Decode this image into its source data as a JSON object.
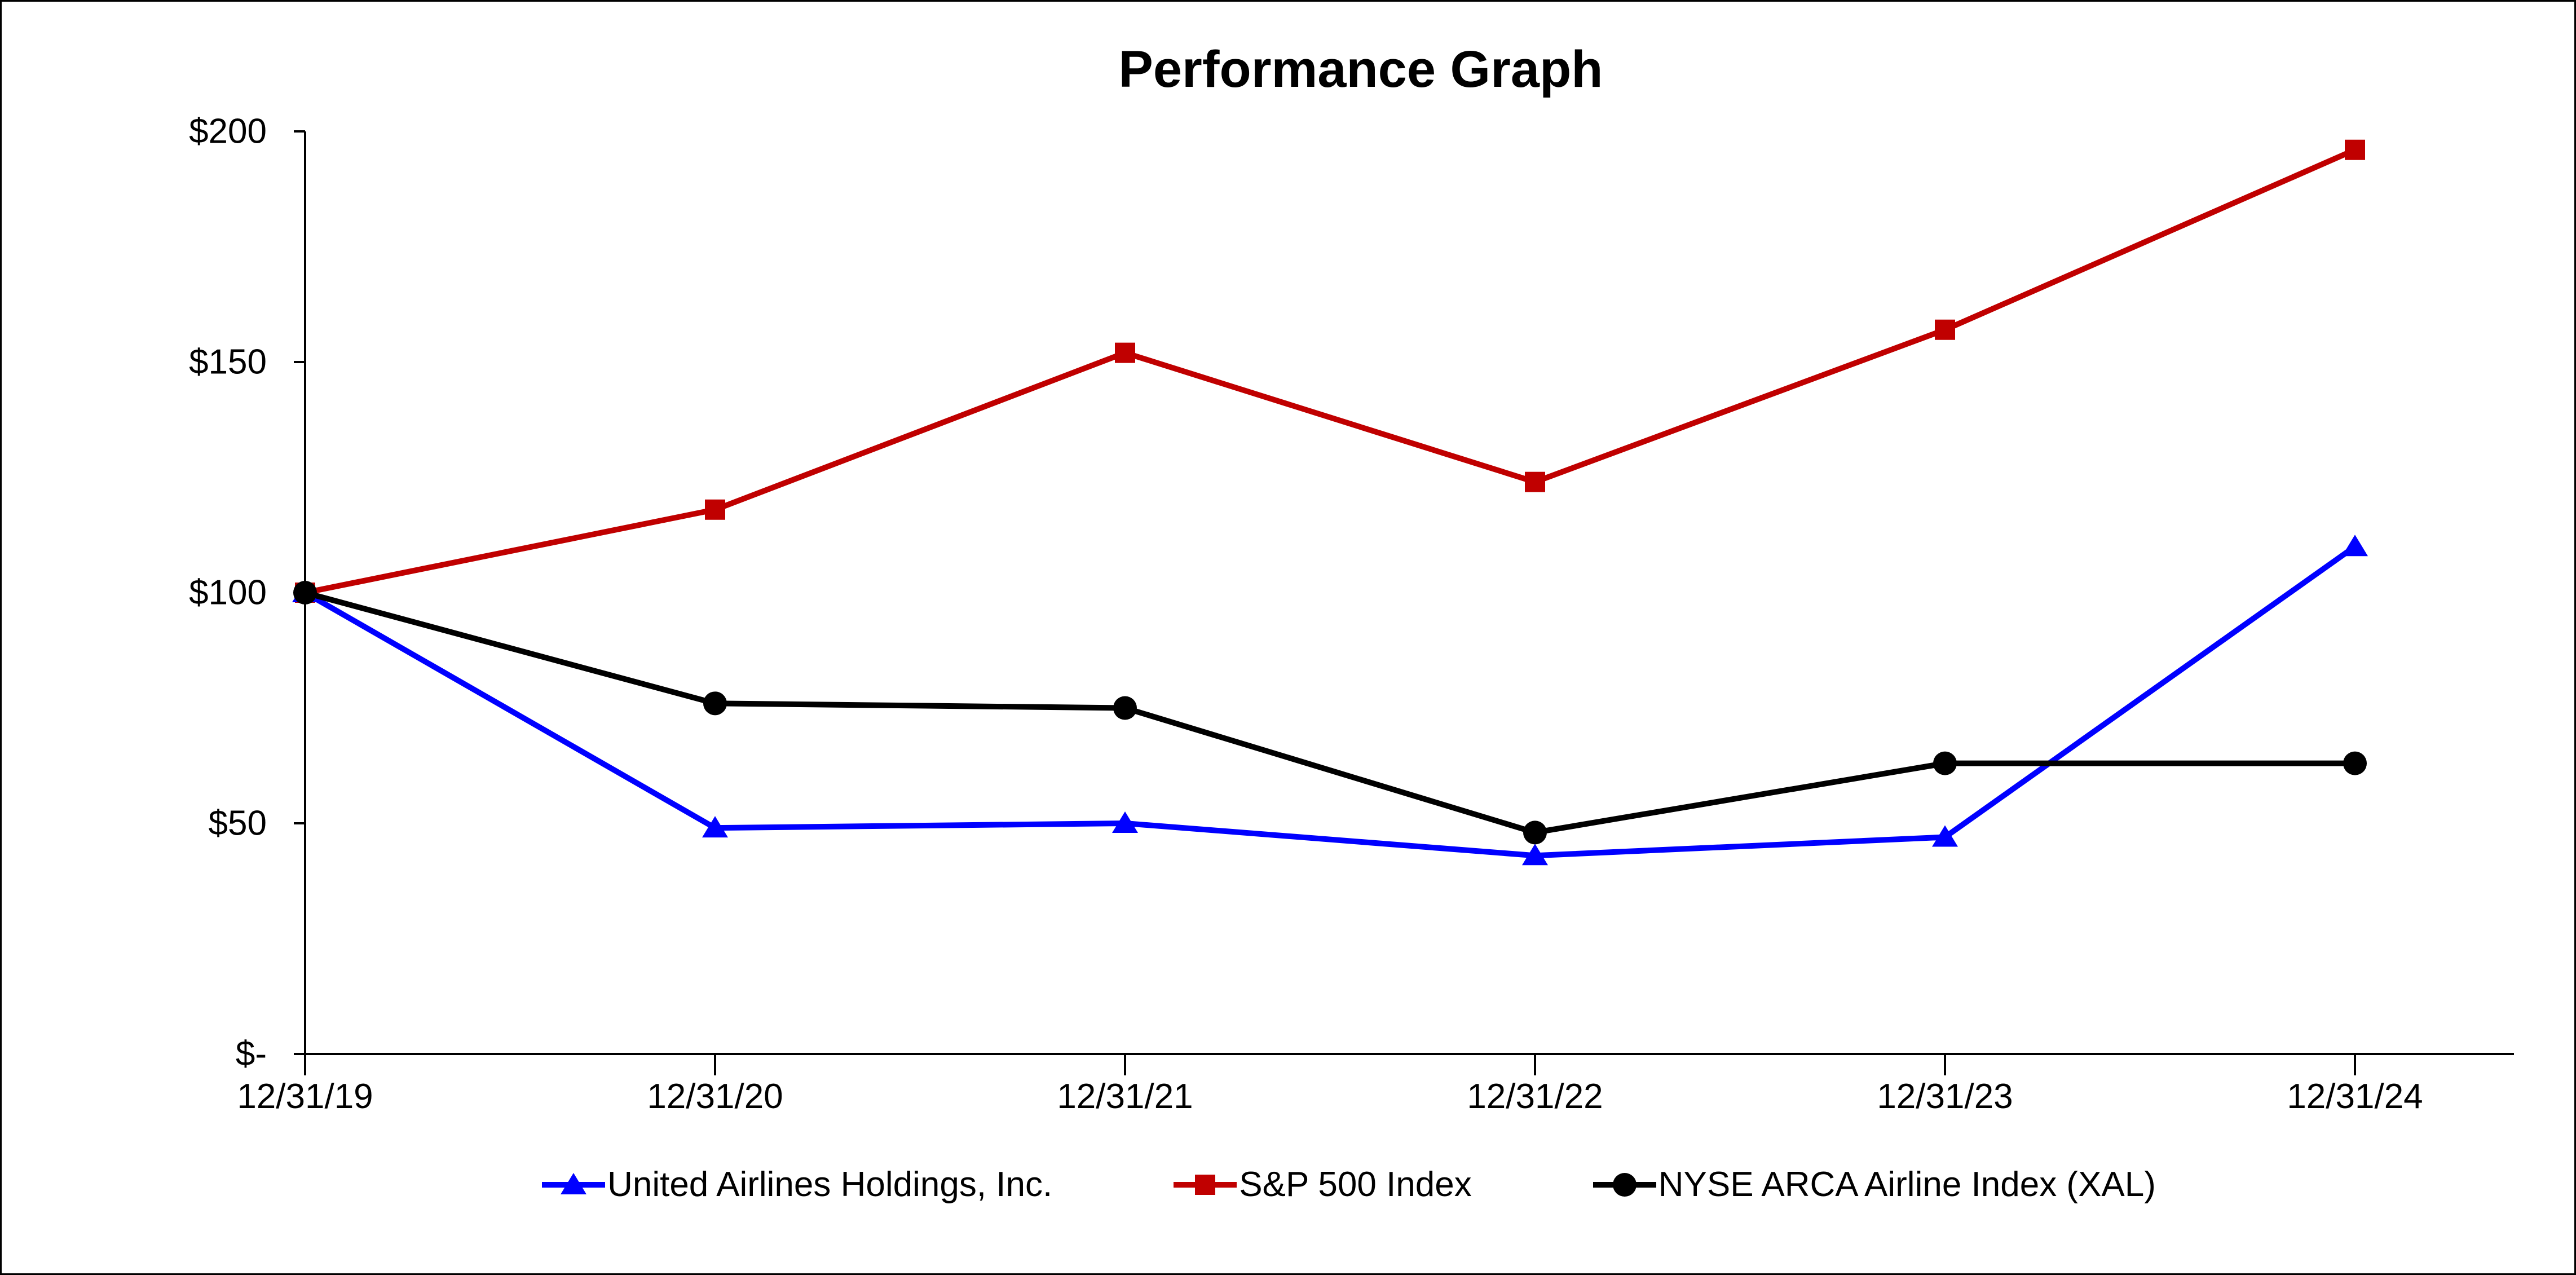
{
  "chart_data": {
    "type": "line",
    "title": "Performance Graph",
    "categories": [
      "12/31/19",
      "12/31/20",
      "12/31/21",
      "12/31/22",
      "12/31/23",
      "12/31/24"
    ],
    "series": [
      {
        "name": "United Airlines Holdings, Inc.",
        "color": "#0000FF",
        "marker": "triangle",
        "values": [
          100,
          49,
          50,
          43,
          47,
          110
        ]
      },
      {
        "name": "S&P 500 Index",
        "color": "#C00000",
        "marker": "square",
        "values": [
          100,
          118,
          152,
          124,
          157,
          196
        ]
      },
      {
        "name": "NYSE ARCA Airline Index (XAL)",
        "color": "#000000",
        "marker": "circle",
        "values": [
          100,
          76,
          75,
          48,
          63,
          63
        ]
      }
    ],
    "xlabel": "",
    "ylabel": "",
    "ylim": [
      0,
      200
    ],
    "y_ticks": [
      {
        "value": 200,
        "label": "$200"
      },
      {
        "value": 150,
        "label": "$150"
      },
      {
        "value": 100,
        "label": "$100"
      },
      {
        "value": 50,
        "label": "$50"
      },
      {
        "value": 0,
        "label": "$-"
      }
    ],
    "grid": false,
    "legend_position": "bottom",
    "axis_color": "#000000"
  }
}
